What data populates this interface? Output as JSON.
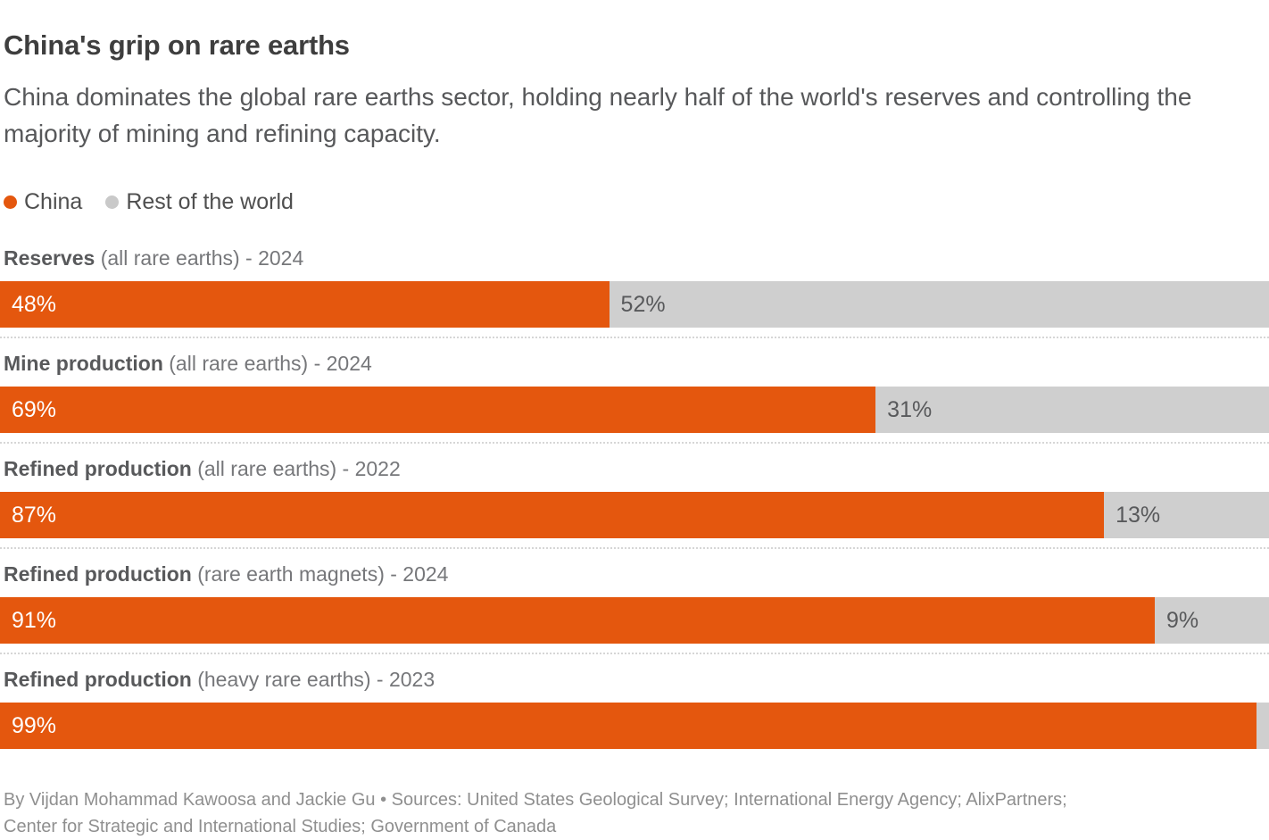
{
  "header": {
    "title": "China's grip on rare earths",
    "subtitle": "China dominates the global rare earths sector, holding nearly half of the world's reserves and controlling the majority of mining and refining capacity."
  },
  "legend": {
    "items": [
      {
        "label": "China",
        "color": "#E4570E"
      },
      {
        "label": "Rest of the world",
        "color": "#C9C9C9"
      }
    ]
  },
  "chart_data": {
    "type": "bar",
    "orientation": "horizontal",
    "stacked": true,
    "unit": "percent",
    "xlim": [
      0,
      100
    ],
    "grid": false,
    "legend_position": "top-left",
    "series_names": [
      "China",
      "Rest of the world"
    ],
    "colors": {
      "china": "#E4570E",
      "rest_of_world": "#CFCFCF"
    },
    "rows": [
      {
        "metric": "Reserves",
        "qualifier": "(all rare earths) - 2024",
        "china": 48,
        "rest_of_world": 52,
        "china_label": "48%",
        "rest_label": "52%"
      },
      {
        "metric": "Mine production",
        "qualifier": "(all rare earths) - 2024",
        "china": 69,
        "rest_of_world": 31,
        "china_label": "69%",
        "rest_label": "31%"
      },
      {
        "metric": "Refined production",
        "qualifier": "(all rare earths) - 2022",
        "china": 87,
        "rest_of_world": 13,
        "china_label": "87%",
        "rest_label": "13%"
      },
      {
        "metric": "Refined production",
        "qualifier": "(rare earth magnets) - 2024",
        "china": 91,
        "rest_of_world": 9,
        "china_label": "91%",
        "rest_label": "9%"
      },
      {
        "metric": "Refined production",
        "qualifier": "(heavy rare earths) - 2023",
        "china": 99,
        "rest_of_world": 1,
        "china_label": "99%",
        "rest_label": ""
      }
    ]
  },
  "footer": {
    "line1": "By Vijdan Mohammad Kawoosa and Jackie Gu • Sources: United States Geological Survey; International Energy Agency; AlixPartners;",
    "line2": "Center for Strategic and International Studies; Government of Canada"
  }
}
